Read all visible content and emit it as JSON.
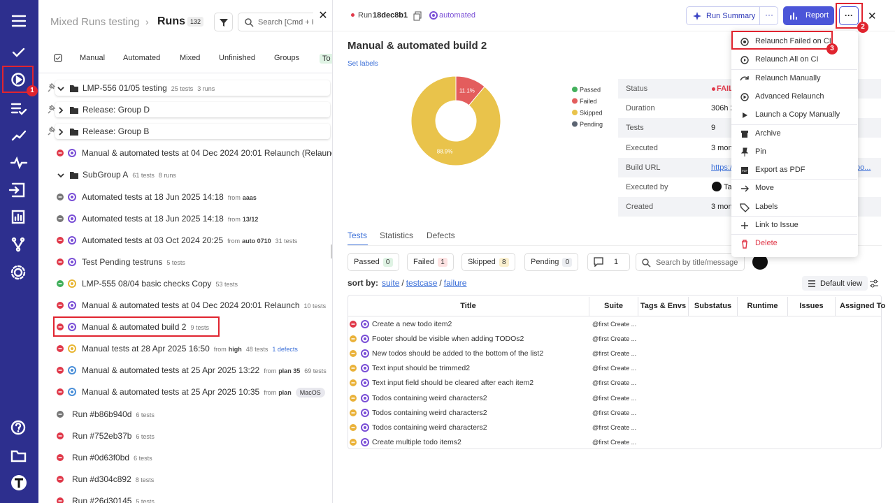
{
  "annotations": [
    "1",
    "2",
    "3"
  ],
  "runs_panel": {
    "breadcrumb": "Mixed Runs testing",
    "title": "Runs",
    "count": "132",
    "search_placeholder": "Search [Cmd + K",
    "tabs": [
      "Manual",
      "Automated",
      "Mixed",
      "Unfinished",
      "Groups",
      "To"
    ],
    "rows": [
      {
        "title": "LMP-556 01/05 testing",
        "tests": "25 tests",
        "runs": "3 runs"
      },
      {
        "title": "Release: Group D"
      },
      {
        "title": "Release: Group B"
      },
      {
        "title": "Manual & automated tests at 04 Dec 2024 20:01 Relaunch (Relaunc"
      },
      {
        "title": "SubGroup A",
        "tests": "61 tests",
        "runs": "8 runs"
      },
      {
        "title": "Automated tests at 18 Jun 2025 14:18",
        "from": "from",
        "source": "aaas"
      },
      {
        "title": "Automated tests at 18 Jun 2025 14:18",
        "from": "from",
        "source": "13/12"
      },
      {
        "title": "Automated tests at 03 Oct 2024 20:25",
        "from": "from",
        "source": "auto 0710",
        "tests": "31 tests"
      },
      {
        "title": "Test Pending testruns",
        "tests": "5 tests"
      },
      {
        "title": "LMP-555 08/04 basic checks Copy",
        "tests": "53 tests"
      },
      {
        "title": "Manual & automated tests at 04 Dec 2024 20:01 Relaunch",
        "tests": "10 tests"
      },
      {
        "title": "Manual & automated build 2",
        "tests": "9 tests"
      },
      {
        "title": "Manual tests at 28 Apr 2025 16:50",
        "from": "from",
        "source": "high",
        "tests": "48 tests",
        "defects": "1 defects"
      },
      {
        "title": "Manual & automated tests at 25 Apr 2025 13:22",
        "from": "from",
        "source": "plan 35",
        "tests": "69 tests"
      },
      {
        "title": "Manual & automated tests at 25 Apr 2025 10:35",
        "from": "from",
        "source": "plan",
        "tag": "MacOS"
      },
      {
        "title": "Run #b86b940d",
        "tests": "6 tests"
      },
      {
        "title": "Run #752eb37b",
        "tests": "6 tests"
      },
      {
        "title": "Run #0d63f0bd",
        "tests": "6 tests"
      },
      {
        "title": "Run #d304c892",
        "tests": "8 tests"
      },
      {
        "title": "Run #26d30145",
        "tests": "5 tests"
      }
    ]
  },
  "run": {
    "run_label": "Run",
    "run_id": "18dec8b1",
    "tag": "automated",
    "summary_button": "Run Summary",
    "report_button": "Report",
    "title": "Manual & automated build 2",
    "set_labels": "Set labels",
    "details": [
      [
        "Status",
        "FAIL"
      ],
      [
        "Duration",
        "306h 2"
      ],
      [
        "Tests",
        "9"
      ],
      [
        "Executed",
        "3 mon"
      ],
      [
        "Build URL",
        "https://"
      ],
      [
        "Executed by",
        "Ta"
      ],
      [
        "Created",
        "3 mon"
      ]
    ],
    "build_url_tail": "po...",
    "menu": [
      "Relaunch Failed on CI",
      "Relaunch All on CI",
      "Relaunch Manually",
      "Advanced Relaunch",
      "Launch a Copy Manually",
      "Archive",
      "Pin",
      "Export as PDF",
      "Move",
      "Labels",
      "Link to Issue",
      "Delete"
    ],
    "tabs": [
      "Tests",
      "Statistics",
      "Defects"
    ],
    "filters": [
      [
        "Passed",
        "0"
      ],
      [
        "Failed",
        "1"
      ],
      [
        "Skipped",
        "8"
      ],
      [
        "Pending",
        "0"
      ]
    ],
    "comments": "1",
    "search_placeholder": "Search by title/message",
    "sort_label": "sort by:",
    "sort_options": [
      "suite",
      "testcase",
      "failure"
    ],
    "sort_sep": "/",
    "view": "Default view",
    "columns": [
      "Title",
      "Suite",
      "Tags & Envs",
      "Substatus",
      "Runtime",
      "Issues",
      "Assigned To"
    ],
    "tests": [
      [
        "Create a new todo item2",
        "@first Create ..."
      ],
      [
        "Footer should be visible when adding TODOs2",
        "@first Create ..."
      ],
      [
        "New todos should be added to the bottom of the list2",
        "@first Create ..."
      ],
      [
        "Text input should be trimmed2",
        "@first Create ..."
      ],
      [
        "Text input field should be cleared after each item2",
        "@first Create ..."
      ],
      [
        "Todos containing weird characters2",
        "@first Create ..."
      ],
      [
        "Todos containing weird characters2",
        "@first Create ..."
      ],
      [
        "Todos containing weird characters2",
        "@first Create ..."
      ],
      [
        "Create multiple todo items2",
        "@first Create ..."
      ]
    ]
  },
  "chart_data": {
    "type": "pie",
    "categories": [
      "Passed",
      "Failed",
      "Skipped",
      "Pending"
    ],
    "values": [
      0,
      11.1,
      88.9,
      0
    ],
    "value_labels": [
      null,
      "11.1%",
      "88.9%",
      null
    ],
    "colors": [
      "#43b05c",
      "#e35d5d",
      "#e9c34b",
      "#5b6472"
    ]
  }
}
